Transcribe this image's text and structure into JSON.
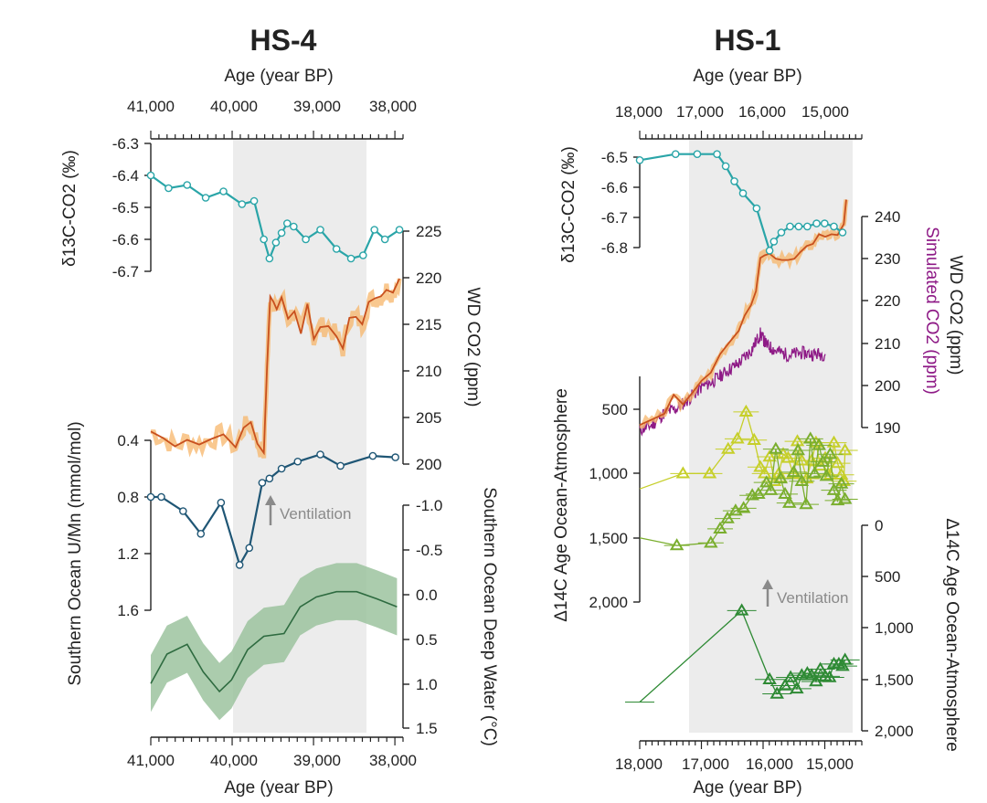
{
  "panels": {
    "left": {
      "title": "HS-4",
      "top_axis_label": "Age (year BP)",
      "bottom_axis_label": "Age (year BP)",
      "x_ticks": [
        "41,000",
        "40,000",
        "39,000",
        "38,000"
      ],
      "d13c_axis": {
        "label": "δ13C-CO2 (‰)",
        "ticks": [
          "-6.3",
          "-6.4",
          "-6.5",
          "-6.6",
          "-6.7"
        ]
      },
      "co2_axis": {
        "label": "WD CO2 (ppm)",
        "ticks": [
          "225",
          "220",
          "215",
          "210",
          "205",
          "200"
        ]
      },
      "umn_axis": {
        "label": "Southern Ocean U/Mn (mmol/mol)",
        "ticks": [
          "0.4",
          "0.8",
          "1.2",
          "1.6"
        ]
      },
      "temp_axis": {
        "label": "Southern Ocean Deep Water (°C)",
        "ticks": [
          "-1.0",
          "-0.5",
          "0.0",
          "0.5",
          "1.0",
          "1.5"
        ]
      },
      "annotation": "Ventilation"
    },
    "right": {
      "title": "HS-1",
      "top_axis_label": "Age (year BP)",
      "bottom_axis_label": "Age (year BP)",
      "x_ticks": [
        "18,000",
        "17,000",
        "16,000",
        "15,000"
      ],
      "d13c_axis": {
        "label": "δ13C-CO2 (‰)",
        "ticks": [
          "-6.5",
          "-6.6",
          "-6.7",
          "-6.8"
        ]
      },
      "co2_axis": {
        "label": "WD CO2 (ppm)",
        "ticks": [
          "240",
          "230",
          "220",
          "210",
          "200",
          "190"
        ]
      },
      "sim_axis_label": "Simulated CO2 (ppm)",
      "c14_left_axis": {
        "label": "Δ14C Age Ocean-Atmosphere",
        "ticks": [
          "500",
          "1,000",
          "1,500",
          "2,000"
        ]
      },
      "c14_right_axis": {
        "label": "Δ14C Age Ocean-Atmosphere",
        "ticks": [
          "0",
          "500",
          "1,000",
          "1,500",
          "2,000"
        ]
      },
      "annotation": "Ventilation"
    }
  },
  "colors": {
    "d13c": "#2aa5a8",
    "co2_line": "#c8501e",
    "co2_band": "#f7b56a",
    "umn": "#1f5675",
    "temp_line": "#2e6b40",
    "temp_band": "#9cc39f",
    "simulated": "#8e1a86",
    "c14_yellow": "#c6cf2a",
    "c14_green": "#7aae2e",
    "c14_dark": "#2e8a34",
    "shade": "#ececec",
    "arrow": "#8a8a8a"
  },
  "chart_data": [
    {
      "type": "line",
      "title": "HS-4",
      "xlabel": "Age (year BP)",
      "xlim": [
        41000,
        37900
      ],
      "shaded_interval": [
        40000,
        38350
      ],
      "series": [
        {
          "name": "δ13C-CO2 (‰)",
          "ylim": [
            -6.3,
            -6.7
          ],
          "x": [
            41000,
            40780,
            40550,
            40320,
            40100,
            39870,
            39720,
            39600,
            39530,
            39450,
            39380,
            39310,
            39230,
            39080,
            38900,
            38700,
            38520,
            38370,
            38230,
            38100,
            37920
          ],
          "y": [
            -6.4,
            -6.44,
            -6.43,
            -6.47,
            -6.45,
            -6.49,
            -6.48,
            -6.6,
            -6.66,
            -6.61,
            -6.58,
            -6.55,
            -6.56,
            -6.6,
            -6.57,
            -6.63,
            -6.66,
            -6.65,
            -6.57,
            -6.6,
            -6.57
          ]
        },
        {
          "name": "WD CO2 (ppm)",
          "ylim": [
            200,
            225
          ],
          "x": [
            41000,
            40850,
            40700,
            40550,
            40400,
            40250,
            40100,
            39950,
            39850,
            39760,
            39680,
            39600,
            39560,
            39520,
            39480,
            39440,
            39380,
            39300,
            39220,
            39140,
            39060,
            38980,
            38900,
            38800,
            38700,
            38620,
            38540,
            38460,
            38380,
            38300,
            38220,
            38150,
            38080,
            38000,
            37920
          ],
          "y": [
            203.5,
            202.8,
            201.9,
            202.6,
            202.1,
            202.7,
            203.2,
            201.8,
            203.9,
            204.5,
            202.2,
            201.2,
            210.4,
            218.0,
            217.4,
            216.6,
            217.9,
            215.6,
            216.4,
            214.0,
            217.2,
            213.4,
            214.7,
            214.8,
            213.7,
            212.4,
            215.7,
            215.8,
            215.0,
            217.4,
            217.8,
            218.0,
            218.7,
            218.4,
            219.9
          ]
        },
        {
          "name": "Southern Ocean U/Mn (mmol/mol)",
          "ylim": [
            0.35,
            1.65
          ],
          "x": [
            41000,
            40870,
            40600,
            40380,
            40130,
            39900,
            39780,
            39620,
            39530,
            39380,
            39180,
            38900,
            38650,
            38250,
            37970
          ],
          "y": [
            0.8,
            0.8,
            0.9,
            1.06,
            0.84,
            1.28,
            1.16,
            0.7,
            0.67,
            0.6,
            0.55,
            0.5,
            0.58,
            0.51,
            0.52
          ]
        },
        {
          "name": "Southern Ocean Deep Water (°C)",
          "ylim": [
            -1.0,
            1.5
          ],
          "x": [
            41000,
            40800,
            40550,
            40350,
            40150,
            40000,
            39800,
            39600,
            39350,
            39150,
            38950,
            38700,
            38450,
            38200,
            37950
          ],
          "y": [
            1.0,
            0.67,
            0.56,
            0.87,
            1.09,
            0.96,
            0.62,
            0.47,
            0.44,
            0.14,
            0.03,
            -0.03,
            -0.03,
            0.05,
            0.14
          ],
          "band_halfwidth": 0.32
        }
      ]
    },
    {
      "type": "line",
      "title": "HS-1",
      "xlabel": "Age (year BP)",
      "xlim": [
        18000,
        14650
      ],
      "shaded_interval": [
        17200,
        14700
      ],
      "series": [
        {
          "name": "δ13C-CO2 (‰)",
          "ylim": [
            -6.45,
            -6.85
          ],
          "x": [
            18000,
            17420,
            17070,
            16750,
            16610,
            16470,
            16330,
            16110,
            15900,
            15830,
            15710,
            15570,
            15430,
            15290,
            15140,
            15010,
            14860,
            14720
          ],
          "y": [
            -6.51,
            -6.49,
            -6.49,
            -6.49,
            -6.53,
            -6.58,
            -6.62,
            -6.67,
            -6.81,
            -6.78,
            -6.75,
            -6.73,
            -6.73,
            -6.73,
            -6.72,
            -6.72,
            -6.73,
            -6.75
          ]
        },
        {
          "name": "WD CO2 (ppm)",
          "ylim": [
            188,
            245
          ],
          "x": [
            18000,
            17800,
            17600,
            17450,
            17300,
            17150,
            17000,
            16850,
            16700,
            16550,
            16400,
            16300,
            16200,
            16120,
            16050,
            15980,
            15900,
            15800,
            15700,
            15600,
            15500,
            15400,
            15300,
            15200,
            15100,
            15000,
            14900,
            14800,
            14700,
            14660
          ],
          "y": [
            190.6,
            191.9,
            193.3,
            197.8,
            195.5,
            198.2,
            201.1,
            203.0,
            207.4,
            210.2,
            212.9,
            216.6,
            219.0,
            222.3,
            230.2,
            230.8,
            231.2,
            230.0,
            229.7,
            229.7,
            230.0,
            231.6,
            233.0,
            233.5,
            235.8,
            235.2,
            235.8,
            235.6,
            238.2,
            244.0
          ]
        },
        {
          "name": "Simulated CO2 (ppm)",
          "ylim": [
            188,
            245
          ],
          "x": [
            18000,
            17800,
            17600,
            17400,
            17200,
            17000,
            16800,
            16600,
            16400,
            16200,
            16050,
            15950,
            15800,
            15600,
            15400,
            15200,
            15000
          ],
          "y": [
            189.4,
            190.6,
            193.5,
            194.5,
            196.9,
            199.6,
            201.1,
            203.3,
            205.2,
            208.2,
            212.2,
            209.6,
            208.2,
            207.2,
            207.7,
            207.4,
            207.4
          ]
        },
        {
          "name": "Δ14C Age Ocean-Atmosphere (yellow)",
          "ylim": [
            250,
            2050
          ],
          "x": [
            18000,
            17300,
            16870,
            16570,
            16420,
            16280,
            16150,
            16050,
            15980,
            15900,
            15820,
            15750,
            15680,
            15600,
            15520,
            15450,
            15380,
            15300,
            15220,
            15150,
            15080,
            15000,
            14920,
            14860,
            14800,
            14740,
            14700,
            14680
          ],
          "y": [
            1120,
            1000,
            1000,
            810,
            730,
            520,
            740,
            950,
            1000,
            870,
            1060,
            1000,
            850,
            880,
            1000,
            750,
            900,
            1040,
            900,
            760,
            940,
            880,
            1010,
            760,
            920,
            1010,
            1060,
            820
          ]
        },
        {
          "name": "Δ14C Age Ocean-Atmosphere (green)",
          "ylim": [
            250,
            2050
          ],
          "x": [
            18000,
            17400,
            16850,
            16700,
            16580,
            16450,
            16320,
            16180,
            16080,
            15950,
            15880,
            15800,
            15720,
            15650,
            15580,
            15510,
            15440,
            15380,
            15310,
            15240,
            15170,
            15100,
            15040,
            14980,
            14920,
            14860,
            14800,
            14740,
            14680
          ],
          "y": [
            1500,
            1560,
            1540,
            1430,
            1350,
            1290,
            1270,
            1170,
            1160,
            1070,
            1130,
            810,
            1040,
            1160,
            1230,
            990,
            820,
            1060,
            1240,
            730,
            1000,
            780,
            910,
            1020,
            850,
            1130,
            1210,
            1080,
            1200
          ]
        },
        {
          "name": "Δ14C Age Ocean-Atmosphere (dark green, right axis)",
          "ylim": [
            0,
            2000
          ],
          "x": [
            18000,
            16350,
            15900,
            15780,
            15650,
            15560,
            15460,
            15380,
            15290,
            15220,
            15150,
            15080,
            15000,
            14930,
            14860,
            14780,
            14720,
            14680
          ],
          "y": [
            1720,
            830,
            1500,
            1640,
            1560,
            1480,
            1590,
            1460,
            1440,
            1460,
            1520,
            1400,
            1470,
            1480,
            1350,
            1350,
            1370,
            1310
          ]
        }
      ]
    }
  ]
}
